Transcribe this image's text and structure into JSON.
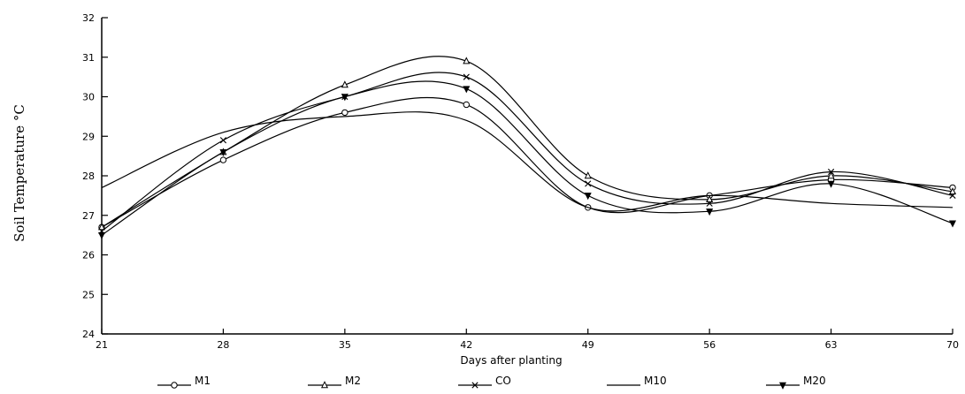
{
  "chart_data": {
    "type": "line",
    "title": "",
    "xlabel": "Days after planting",
    "ylabel": "Soil Temperature °C",
    "x": [
      21,
      28,
      35,
      42,
      49,
      56,
      63,
      70
    ],
    "xlim": [
      21,
      70
    ],
    "ylim": [
      24,
      32
    ],
    "yticks": [
      24,
      25,
      26,
      27,
      28,
      29,
      30,
      31,
      32
    ],
    "grid": false,
    "legend_position": "bottom",
    "series": [
      {
        "name": "M1",
        "marker": "circle",
        "values": [
          26.7,
          28.4,
          29.6,
          29.8,
          27.2,
          27.5,
          27.9,
          27.7
        ]
      },
      {
        "name": "M2",
        "marker": "triangle",
        "values": [
          26.7,
          28.6,
          30.3,
          30.9,
          28.0,
          27.4,
          28.0,
          27.6
        ]
      },
      {
        "name": "CO",
        "marker": "x",
        "values": [
          26.6,
          28.9,
          30.0,
          30.5,
          27.8,
          27.3,
          28.1,
          27.5
        ]
      },
      {
        "name": "M10",
        "marker": "none",
        "values": [
          27.7,
          29.1,
          29.5,
          29.4,
          27.2,
          27.5,
          27.3,
          27.2
        ]
      },
      {
        "name": "M20",
        "marker": "down-triangle",
        "values": [
          26.5,
          28.6,
          30.0,
          30.2,
          27.5,
          27.1,
          27.8,
          26.8
        ]
      }
    ]
  }
}
